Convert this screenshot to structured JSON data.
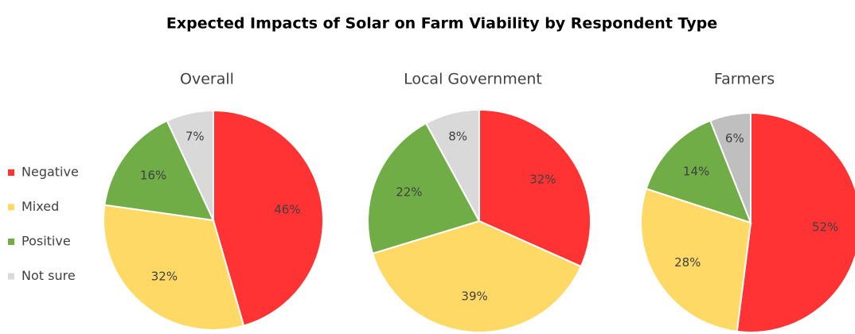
{
  "title": "Expected Impacts of Solar on Farm Viability by Respondent Type",
  "categories": [
    "Negative",
    "Mixed",
    "Positive",
    "Not sure"
  ],
  "chart_data": [
    {
      "type": "pie",
      "title": "Overall",
      "values": [
        46,
        32,
        16,
        7
      ],
      "value_labels": [
        "46%",
        "32%",
        "16%",
        "7%"
      ],
      "colors": [
        "#ff3333",
        "#ffd966",
        "#70ad47",
        "#d9d9d9"
      ]
    },
    {
      "type": "pie",
      "title": "Local Government",
      "values": [
        32,
        39,
        22,
        8
      ],
      "value_labels": [
        "32%",
        "39%",
        "22%",
        "8%"
      ],
      "colors": [
        "#ff3333",
        "#ffd966",
        "#70ad47",
        "#d9d9d9"
      ]
    },
    {
      "type": "pie",
      "title": "Farmers",
      "values": [
        52,
        28,
        14,
        6
      ],
      "value_labels": [
        "52%",
        "28%",
        "14%",
        "6%"
      ],
      "colors": [
        "#ff3333",
        "#ffd966",
        "#70ad47",
        "#bfbfbf"
      ]
    }
  ]
}
